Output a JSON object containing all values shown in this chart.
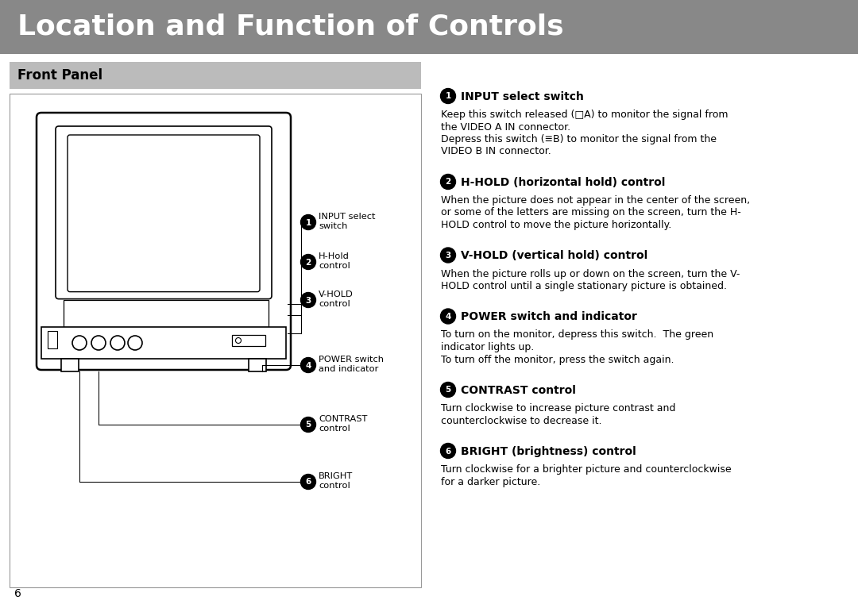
{
  "title": "Location and Function of Controls",
  "title_bg": "#888888",
  "title_color": "#ffffff",
  "title_fontsize": 26,
  "section_title": "Front Panel",
  "section_bg": "#bbbbbb",
  "page_bg": "#ffffff",
  "page_number": "6",
  "controls": [
    {
      "num": "1",
      "heading": "INPUT select switch",
      "body_lines": [
        "Keep this switch released (□A) to monitor the signal from",
        "the VIDEO A IN connector.",
        "Depress this switch (≡B) to monitor the signal from the",
        "VIDEO B IN connector."
      ]
    },
    {
      "num": "2",
      "heading": "H-HOLD (horizontal hold) control",
      "body_lines": [
        "When the picture does not appear in the center of the screen,",
        "or some of the letters are missing on the screen, turn the H-",
        "HOLD control to move the picture horizontally."
      ]
    },
    {
      "num": "3",
      "heading": "V-HOLD (vertical hold) control",
      "body_lines": [
        "When the picture rolls up or down on the screen, turn the V-",
        "HOLD control until a single stationary picture is obtained."
      ]
    },
    {
      "num": "4",
      "heading": "POWER switch and indicator",
      "body_lines": [
        "To turn on the monitor, depress this switch.  The green",
        "indicator lights up.",
        "To turn off the monitor, press the switch again."
      ]
    },
    {
      "num": "5",
      "heading": "CONTRAST control",
      "body_lines": [
        "Turn clockwise to increase picture contrast and",
        "counterclockwise to decrease it."
      ]
    },
    {
      "num": "6",
      "heading": "BRIGHT (brightness) control",
      "body_lines": [
        "Turn clockwise for a brighter picture and counterclockwise",
        "for a darker picture."
      ]
    }
  ]
}
